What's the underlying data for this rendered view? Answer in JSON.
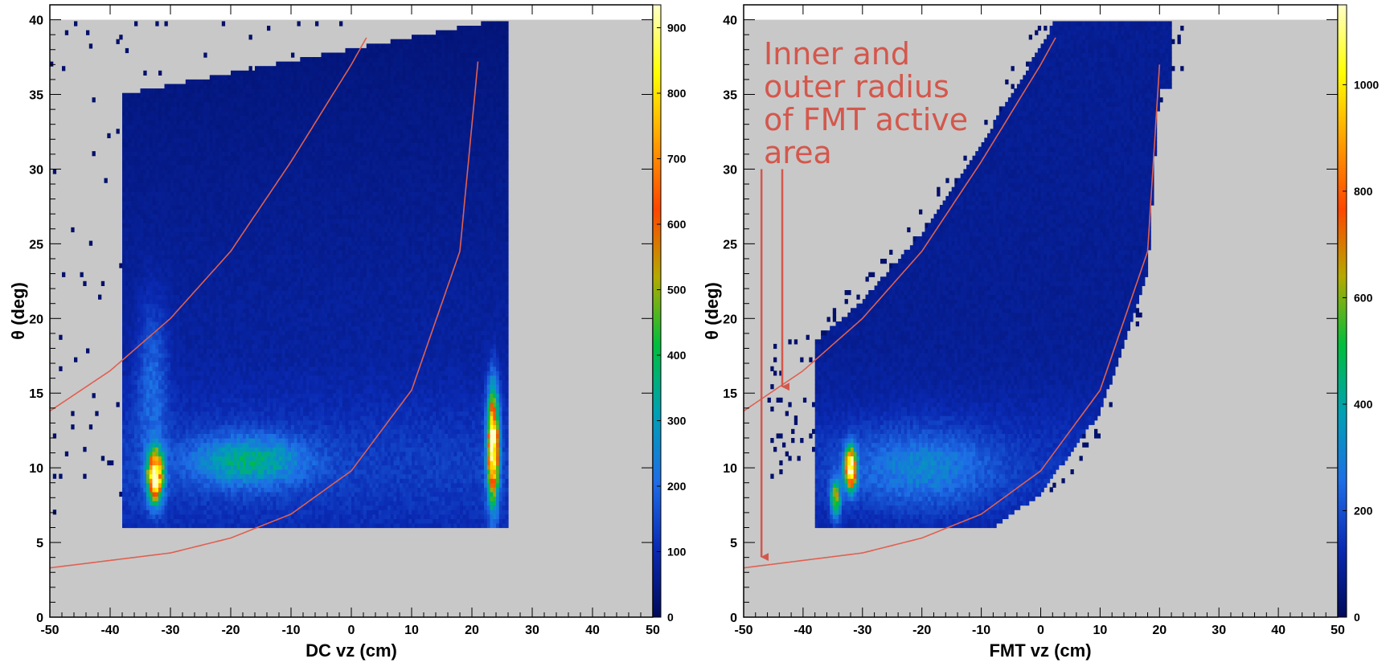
{
  "chart_data": [
    {
      "type": "heatmap",
      "title": "",
      "xlabel": "DC vz (cm)",
      "ylabel": "θ (deg)",
      "xlim": [
        -50,
        50
      ],
      "ylim": [
        0,
        41
      ],
      "x_ticks": [
        "-50",
        "-40",
        "-30",
        "-20",
        "-10",
        "0",
        "10",
        "20",
        "30",
        "40",
        "50"
      ],
      "y_ticks": [
        "0",
        "5",
        "10",
        "15",
        "20",
        "25",
        "30",
        "35",
        "40"
      ],
      "colorbar": {
        "min": 0,
        "max": 935,
        "ticks": [
          "0",
          "100",
          "200",
          "300",
          "400",
          "500",
          "600",
          "700",
          "800",
          "900"
        ]
      },
      "background_color": "#c8c8c8",
      "data_extent": {
        "vz": [
          -38,
          26
        ],
        "theta": [
          6,
          40
        ]
      },
      "hotspots": [
        {
          "vz": -32.5,
          "theta": 9.5,
          "counts": 935
        },
        {
          "vz": 23.5,
          "theta": 11,
          "counts": 900
        },
        {
          "vz": 23.5,
          "theta": 15,
          "counts": 450
        },
        {
          "vz": -17,
          "theta": 10,
          "counts": 230
        }
      ],
      "curves": [
        {
          "name": "inner radius",
          "points": [
            [
              -50,
              13.8
            ],
            [
              -40,
              16.5
            ],
            [
              -30,
              20
            ],
            [
              -20,
              24.5
            ],
            [
              -10,
              30.5
            ],
            [
              0,
              37
            ],
            [
              2.5,
              38.8
            ]
          ]
        },
        {
          "name": "outer radius",
          "points": [
            [
              -50,
              3.3
            ],
            [
              -30,
              4.3
            ],
            [
              -20,
              5.3
            ],
            [
              -10,
              6.9
            ],
            [
              0,
              9.8
            ],
            [
              10,
              15.2
            ],
            [
              18,
              24.5
            ],
            [
              21,
              37.2
            ]
          ]
        }
      ]
    },
    {
      "type": "heatmap",
      "title": "",
      "xlabel": "FMT vz (cm)",
      "ylabel": "θ (deg)",
      "xlim": [
        -50,
        50
      ],
      "ylim": [
        0,
        41
      ],
      "x_ticks": [
        "-50",
        "-40",
        "-30",
        "-20",
        "-10",
        "0",
        "10",
        "20",
        "30",
        "40",
        "50"
      ],
      "y_ticks": [
        "0",
        "5",
        "10",
        "15",
        "20",
        "25",
        "30",
        "35",
        "40"
      ],
      "colorbar": {
        "min": 0,
        "max": 1150,
        "ticks": [
          "0",
          "200",
          "400",
          "600",
          "800",
          "1000"
        ]
      },
      "background_color": "#c8c8c8",
      "hotspots": [
        {
          "vz": -32,
          "theta": 10,
          "counts": 1100
        },
        {
          "vz": -34.5,
          "theta": 8,
          "counts": 500
        }
      ],
      "curves": [
        {
          "name": "inner radius",
          "points": [
            [
              -50,
              13.8
            ],
            [
              -40,
              16.5
            ],
            [
              -30,
              20
            ],
            [
              -20,
              24.5
            ],
            [
              -10,
              30.5
            ],
            [
              0,
              37
            ],
            [
              2.5,
              38.8
            ]
          ]
        },
        {
          "name": "outer radius",
          "points": [
            [
              -50,
              3.3
            ],
            [
              -30,
              4.3
            ],
            [
              -20,
              5.3
            ],
            [
              -10,
              6.9
            ],
            [
              0,
              9.8
            ],
            [
              10,
              15.2
            ],
            [
              18,
              24.5
            ],
            [
              20,
              37
            ]
          ]
        }
      ],
      "annotation": {
        "lines": [
          "Inner and",
          "outer radius",
          "of FMT active",
          "area"
        ],
        "arrows": [
          {
            "from_vz": -47,
            "from_theta": 30,
            "to_vz": -47,
            "to_theta": 3.6
          },
          {
            "from_vz": -43.5,
            "from_theta": 30,
            "to_vz": -43.5,
            "to_theta": 15
          }
        ]
      }
    }
  ],
  "colors": {
    "curve": "#e06050",
    "annotation": "#d4574c",
    "background": "#c8c8c8",
    "palette": [
      "#000a5a",
      "#0a2ab4",
      "#1e6ee6",
      "#00a0b4",
      "#00be3c",
      "#b4aa00",
      "#ff4600",
      "#ffa000",
      "#ffff00",
      "#ffffc8"
    ]
  }
}
